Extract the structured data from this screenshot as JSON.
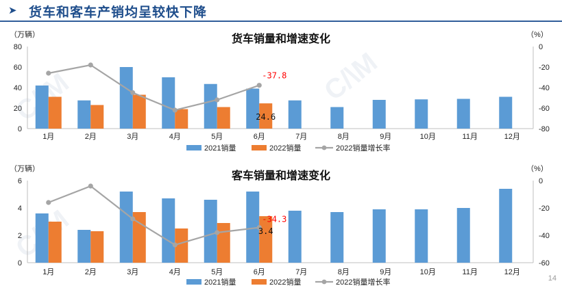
{
  "header": {
    "title": "货车和客车产销均呈较快下降"
  },
  "page_number": "14",
  "colors": {
    "bar2021": "#5b9bd5",
    "bar2022": "#ed7d31",
    "rate": "#a5a5a5",
    "title": "#1f4e8c",
    "annotation": "#ff0000"
  },
  "chart_data": [
    {
      "type": "bar",
      "title": "货车销量和增速变化",
      "left_unit": "（万辆）",
      "right_unit": "（%）",
      "categories": [
        "1月",
        "2月",
        "3月",
        "4月",
        "5月",
        "6月",
        "7月",
        "8月",
        "9月",
        "10月",
        "11月",
        "12月"
      ],
      "ylim": [
        0,
        80
      ],
      "yticks": [
        "0",
        "20",
        "40",
        "60",
        "80"
      ],
      "y2lim": [
        -80,
        0
      ],
      "y2ticks": [
        "0",
        "-20",
        "-40",
        "-60",
        "-80"
      ],
      "series": [
        {
          "name": "2021销量",
          "kind": "bar",
          "values": [
            42,
            27.5,
            60,
            50,
            43.5,
            39,
            27.5,
            21,
            28,
            28.5,
            29,
            31
          ]
        },
        {
          "name": "2022销量",
          "kind": "bar",
          "values": [
            31,
            23,
            33,
            19,
            21,
            24.6,
            null,
            null,
            null,
            null,
            null,
            null
          ]
        },
        {
          "name": "2022销量增长率",
          "kind": "line",
          "axis": "right",
          "values": [
            -26,
            -18,
            -45,
            -62,
            -52,
            -37.8,
            null,
            null,
            null,
            null,
            null,
            null
          ]
        }
      ],
      "annotations": [
        {
          "text": "-37.8",
          "color": "red"
        },
        {
          "text": "24.6",
          "color": "black"
        }
      ],
      "legend": "bottom"
    },
    {
      "type": "bar",
      "title": "客车销量和增速变化",
      "left_unit": "（万辆）",
      "right_unit": "（%）",
      "categories": [
        "1月",
        "2月",
        "3月",
        "4月",
        "5月",
        "6月",
        "7月",
        "8月",
        "9月",
        "10月",
        "11月",
        "12月"
      ],
      "ylim": [
        0,
        6
      ],
      "yticks": [
        "0",
        "2",
        "4",
        "6"
      ],
      "y2lim": [
        -60,
        0
      ],
      "y2ticks": [
        "0",
        "-20",
        "-40",
        "-60"
      ],
      "series": [
        {
          "name": "2021销量",
          "kind": "bar",
          "values": [
            3.6,
            2.4,
            5.2,
            4.7,
            4.6,
            5.2,
            3.8,
            3.7,
            3.9,
            3.9,
            4.0,
            5.4
          ]
        },
        {
          "name": "2022销量",
          "kind": "bar",
          "values": [
            3.0,
            2.3,
            3.7,
            2.5,
            2.9,
            3.4,
            null,
            null,
            null,
            null,
            null,
            null
          ]
        },
        {
          "name": "2022销量增长率",
          "kind": "line",
          "axis": "right",
          "values": [
            -16,
            -4,
            -28,
            -47,
            -38,
            -34.3,
            null,
            null,
            null,
            null,
            null,
            null
          ]
        }
      ],
      "annotations": [
        {
          "text": "-34.3",
          "color": "red"
        },
        {
          "text": "3.4",
          "color": "black"
        }
      ],
      "legend": "bottom"
    }
  ]
}
